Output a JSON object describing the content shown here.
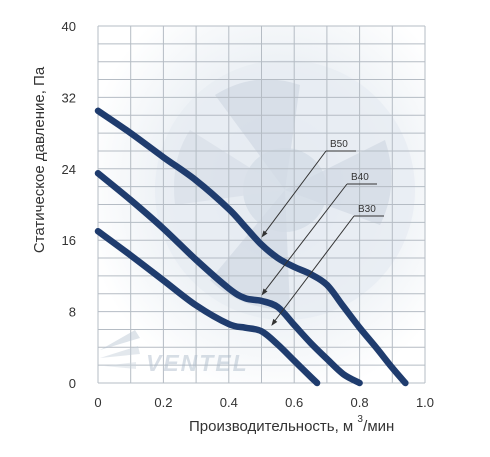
{
  "chart_data": {
    "type": "line",
    "xlabel": "Производительность, м",
    "xlabel_sup": "3",
    "xlabel_tail": "/мин",
    "ylabel": "Статическое давление, Па",
    "xlim": [
      0,
      1.0
    ],
    "ylim": [
      0,
      40
    ],
    "x_ticks": [
      0,
      0.2,
      0.4,
      0.6,
      0.8,
      1.0
    ],
    "x_tick_labels": [
      "0",
      "0.2",
      "0.4",
      "0.6",
      "0.8",
      "1.0"
    ],
    "y_ticks": [
      0,
      8,
      16,
      24,
      32,
      40
    ],
    "y_tick_labels": [
      "0",
      "8",
      "16",
      "24",
      "32",
      "40"
    ],
    "grid": true,
    "line_color": "#1f3c6e",
    "series": [
      {
        "name": "B50",
        "x": [
          0,
          0.1,
          0.2,
          0.3,
          0.4,
          0.45,
          0.5,
          0.55,
          0.6,
          0.65,
          0.7,
          0.75,
          0.8,
          0.85,
          0.9,
          0.94
        ],
        "y": [
          30.5,
          28,
          25.3,
          22.7,
          19.5,
          17.5,
          15.5,
          14,
          13,
          12.2,
          11,
          8.6,
          6.2,
          4,
          1.7,
          0
        ]
      },
      {
        "name": "B40",
        "x": [
          0,
          0.1,
          0.2,
          0.3,
          0.4,
          0.45,
          0.5,
          0.55,
          0.6,
          0.65,
          0.7,
          0.75,
          0.8
        ],
        "y": [
          23.5,
          20.5,
          17.3,
          13.8,
          10.6,
          9.5,
          9.2,
          8.5,
          6.5,
          4.5,
          2.7,
          1,
          0
        ]
      },
      {
        "name": "B30",
        "x": [
          0,
          0.1,
          0.2,
          0.3,
          0.4,
          0.45,
          0.5,
          0.55,
          0.6,
          0.65,
          0.67
        ],
        "y": [
          17,
          14.3,
          11.5,
          8.7,
          6.6,
          6.2,
          5.8,
          4.3,
          2.5,
          0.7,
          0
        ]
      }
    ],
    "annotations": [
      {
        "text": "B50",
        "point_x": 0.5,
        "point_y": 16.3
      },
      {
        "text": "B40",
        "point_x": 0.5,
        "point_y": 9.8
      },
      {
        "text": "B30",
        "point_x": 0.53,
        "point_y": 6.4
      }
    ],
    "watermark": "VENTEL"
  }
}
